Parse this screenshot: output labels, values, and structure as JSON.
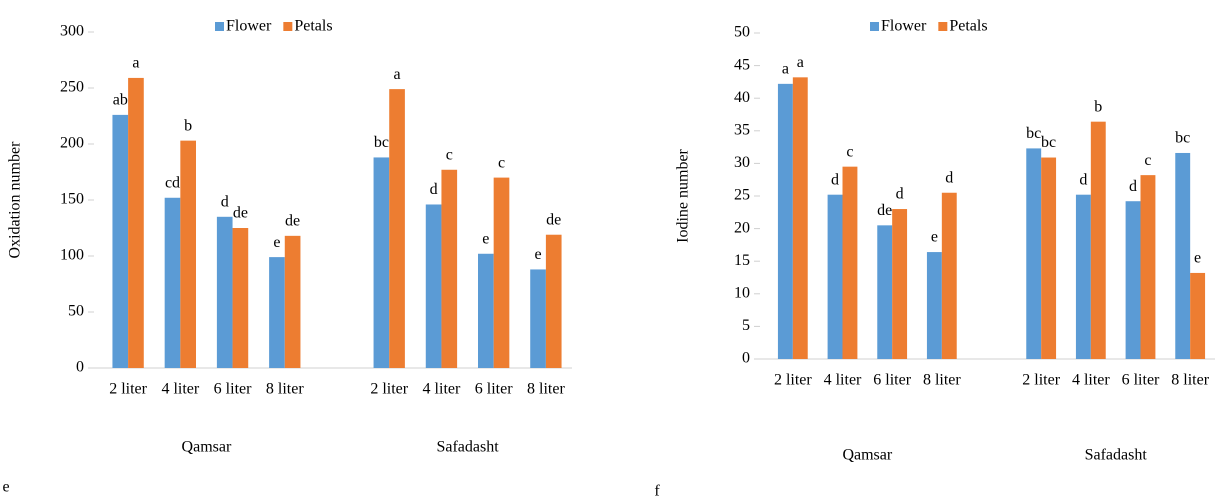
{
  "chart_data": [
    {
      "type": "bar",
      "panel_label": "e",
      "y_label": "Oxidation number",
      "categories": [
        "2 liter",
        "4 liter",
        "6 liter",
        "8 liter",
        null,
        "2 liter",
        "4 liter",
        "6 liter",
        "8 liter"
      ],
      "groups": [
        "Qamsar",
        "Safadasht"
      ],
      "series": [
        {
          "name": "Flower",
          "color": "#5b9bd5",
          "values": [
            226,
            152,
            135,
            99,
            null,
            188,
            146,
            102,
            88
          ],
          "letters": [
            "ab",
            "cd",
            "d",
            "e",
            null,
            "bc",
            "d",
            "e",
            "e"
          ]
        },
        {
          "name": "Petals",
          "color": "#ed7d31",
          "values": [
            259,
            203,
            125,
            118,
            null,
            249,
            177,
            170,
            119
          ],
          "letters": [
            "a",
            "b",
            "de",
            "de",
            null,
            "a",
            "c",
            "c",
            "de"
          ]
        }
      ],
      "ylim": [
        0,
        300
      ],
      "yticks": [
        0,
        50,
        100,
        150,
        200,
        250,
        300
      ],
      "legend": "top",
      "grid": false
    },
    {
      "type": "bar",
      "panel_label": "f",
      "y_label": "Iodine number",
      "categories": [
        "2 liter",
        "4 liter",
        "6 liter",
        "8 liter",
        null,
        "2 liter",
        "4 liter",
        "6 liter",
        "8 liter"
      ],
      "groups": [
        "Qamsar",
        "Safadasht"
      ],
      "series": [
        {
          "name": "Flower",
          "color": "#5b9bd5",
          "values": [
            42.2,
            25.2,
            20.5,
            16.4,
            null,
            32.3,
            25.2,
            24.2,
            31.6
          ],
          "letters": [
            "a",
            "d",
            "de",
            "e",
            null,
            "bc",
            "d",
            "d",
            "bc"
          ]
        },
        {
          "name": "Petals",
          "color": "#ed7d31",
          "values": [
            43.2,
            29.5,
            23,
            25.5,
            null,
            30.9,
            36.4,
            28.2,
            13.2
          ],
          "letters": [
            "a",
            "c",
            "d",
            "d",
            null,
            "bc",
            "b",
            "c",
            "e"
          ]
        }
      ],
      "ylim": [
        0,
        50
      ],
      "yticks": [
        0,
        5,
        10,
        15,
        20,
        25,
        30,
        35,
        40,
        45,
        50
      ],
      "legend": "top",
      "grid": false
    }
  ]
}
